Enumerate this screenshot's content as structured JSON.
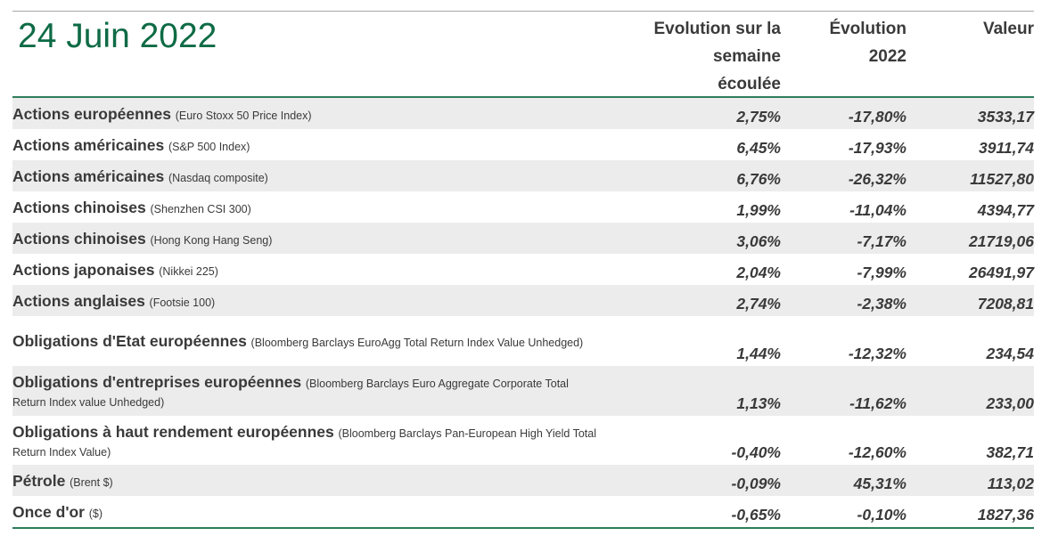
{
  "title": "24 Juin 2022",
  "columns": {
    "week": "Evolution sur la\nsemaine\nécoulée",
    "ytd": "Évolution\n2022",
    "value": "Valeur"
  },
  "rows": [
    {
      "name": "Actions européennes",
      "sub": "(Euro Stoxx 50 Price Index)",
      "week": "2,75%",
      "ytd": "-17,80%",
      "value": "3533,17"
    },
    {
      "name": "Actions américaines",
      "sub": "(S&P 500 Index)",
      "week": "6,45%",
      "ytd": "-17,93%",
      "value": "3911,74"
    },
    {
      "name": "Actions américaines",
      "sub": "(Nasdaq composite)",
      "week": "6,76%",
      "ytd": "-26,32%",
      "value": "11527,80"
    },
    {
      "name": "Actions chinoises",
      "sub": "(Shenzhen CSI 300)",
      "week": "1,99%",
      "ytd": "-11,04%",
      "value": "4394,77"
    },
    {
      "name": "Actions chinoises",
      "sub": "(Hong Kong Hang Seng)",
      "week": "3,06%",
      "ytd": "-7,17%",
      "value": "21719,06"
    },
    {
      "name": "Actions japonaises",
      "sub": "(Nikkei 225)",
      "week": "2,04%",
      "ytd": "-7,99%",
      "value": "26491,97"
    },
    {
      "name": "Actions anglaises",
      "sub": "(Footsie 100)",
      "week": "2,74%",
      "ytd": "-2,38%",
      "value": "7208,81"
    },
    {
      "name": "Obligations d'Etat européennes",
      "sub": "(Bloomberg Barclays EuroAgg Total Return Index Value Unhedged)",
      "week": "1,44%",
      "ytd": "-12,32%",
      "value": "234,54"
    },
    {
      "name": "Obligations d'entreprises européennes",
      "sub": "(Bloomberg Barclays Euro Aggregate Corporate Total\nReturn Index value Unhedged)",
      "week": "1,13%",
      "ytd": "-11,62%",
      "value": "233,00"
    },
    {
      "name": "Obligations à haut rendement européennes",
      "sub": "(Bloomberg Barclays Pan-European High Yield Total\nReturn Index Value)",
      "week": "-0,40%",
      "ytd": "-12,60%",
      "value": "382,71"
    },
    {
      "name": "Pétrole",
      "sub": "(Brent $)",
      "week": "-0,09%",
      "ytd": "45,31%",
      "value": "113,02"
    },
    {
      "name": "Once d'or",
      "sub": "($)",
      "week": "-0,65%",
      "ytd": "-0,10%",
      "value": "1827,36"
    }
  ]
}
